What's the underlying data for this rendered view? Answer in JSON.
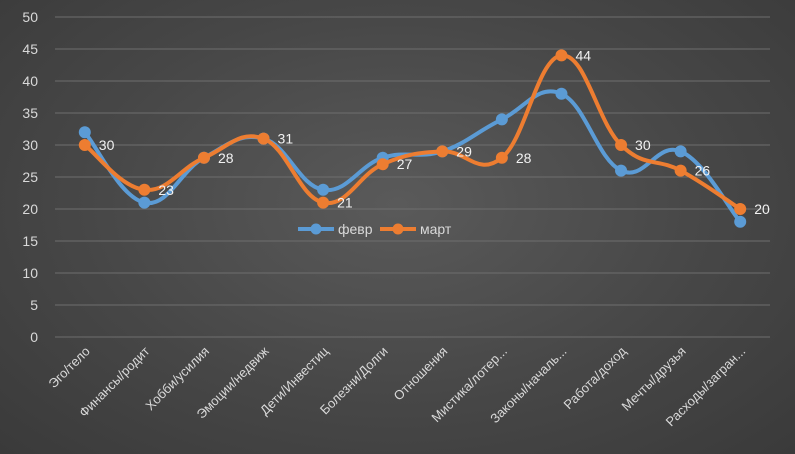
{
  "chart_data": {
    "type": "line",
    "title": "",
    "xlabel": "",
    "ylabel": "",
    "ylim": [
      0,
      50
    ],
    "yticks": [
      0,
      5,
      10,
      15,
      20,
      25,
      30,
      35,
      40,
      45,
      50
    ],
    "grid": true,
    "legend_position": "center",
    "categories": [
      "Эго/тело",
      "Финансы/родит",
      "Хобби/усилия",
      "Эмоции/недвиж",
      "Дети/Инвестиц",
      "Болезни/Долги",
      "Отношения",
      "Мистика/лотер...",
      "Законы/началь...",
      "Работа/доход",
      "Мечты/друзья",
      "Расходы/загран..."
    ],
    "series": [
      {
        "name": "февр",
        "color": "#5b9bd5",
        "values": [
          32,
          21,
          28,
          31,
          23,
          28,
          29,
          34,
          38,
          26,
          29,
          18
        ],
        "labels": false
      },
      {
        "name": "март",
        "color": "#ed7d31",
        "values": [
          30,
          23,
          28,
          31,
          21,
          27,
          29,
          28,
          44,
          30,
          26,
          20
        ],
        "labels": true
      }
    ]
  }
}
